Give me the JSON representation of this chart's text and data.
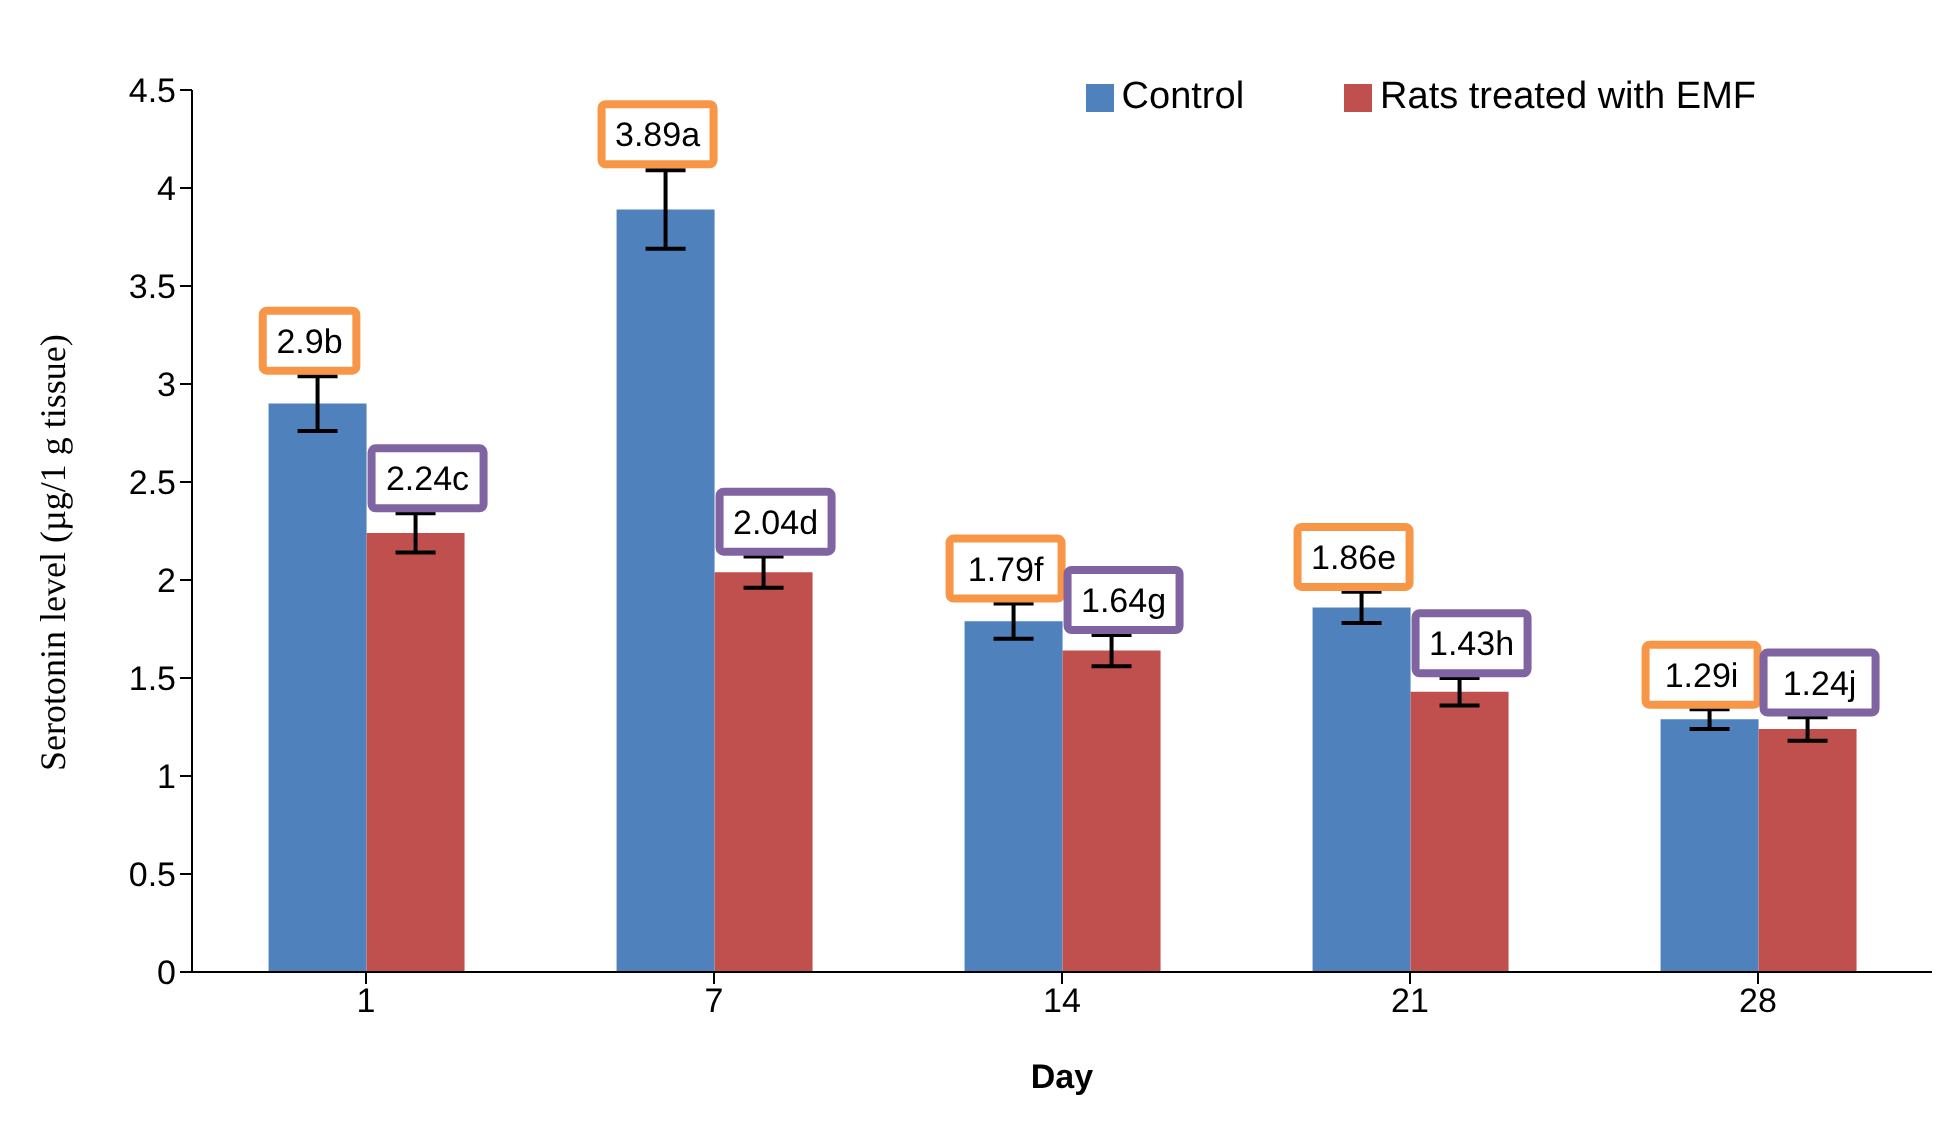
{
  "chart_data": {
    "type": "bar",
    "xlabel": "Day",
    "ylabel": "Serotonin level (µg/1 g tissue)",
    "categories": [
      "1",
      "7",
      "14",
      "21",
      "28"
    ],
    "series": [
      {
        "name": "Control",
        "color": "#4f81bd",
        "values": [
          2.9,
          3.89,
          1.79,
          1.86,
          1.29
        ],
        "errors": [
          0.14,
          0.2,
          0.09,
          0.08,
          0.05
        ],
        "value_labels": [
          "2.9b",
          "3.89a",
          "1.79f",
          "1.86e",
          "1.29i"
        ]
      },
      {
        "name": "Rats treated with EMF",
        "color": "#c0504d",
        "values": [
          2.24,
          2.04,
          1.64,
          1.43,
          1.24
        ],
        "errors": [
          0.1,
          0.08,
          0.08,
          0.07,
          0.06
        ],
        "value_labels": [
          "2.24c",
          "2.04d",
          "1.64g",
          "1.43h",
          "1.24j"
        ]
      }
    ],
    "ylim": [
      0,
      4.5
    ],
    "yticks": [
      0,
      0.5,
      1,
      1.5,
      2,
      2.5,
      3,
      3.5,
      4,
      4.5
    ],
    "legend": "top right"
  }
}
